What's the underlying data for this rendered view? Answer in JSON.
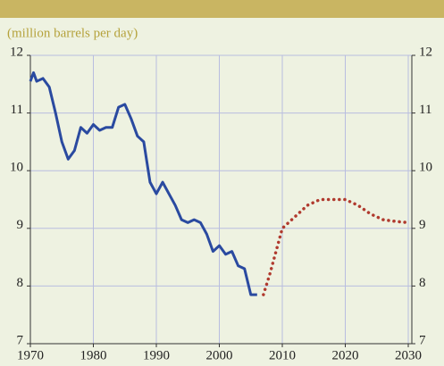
{
  "chart_data": {
    "type": "line",
    "subtitle": "(million barrels per day)",
    "series": [
      {
        "color": "#2a4aa0",
        "style": "solid",
        "x": [
          1970,
          1970.5,
          1971,
          1972,
          1973,
          1974,
          1975,
          1976,
          1977,
          1978,
          1979,
          1980,
          1981,
          1982,
          1983,
          1984,
          1985,
          1986,
          1987,
          1988,
          1989,
          1990,
          1991,
          1992,
          1993,
          1994,
          1995,
          1996,
          1997,
          1998,
          1999,
          2000,
          2001,
          2002,
          2003,
          2004,
          2005,
          2006
        ],
        "values": [
          11.55,
          11.7,
          11.55,
          11.6,
          11.45,
          11.0,
          10.5,
          10.2,
          10.35,
          10.75,
          10.65,
          10.8,
          10.7,
          10.75,
          10.75,
          11.1,
          11.15,
          10.9,
          10.6,
          10.5,
          9.8,
          9.6,
          9.8,
          9.6,
          9.4,
          9.15,
          9.1,
          9.15,
          9.1,
          8.9,
          8.6,
          8.7,
          8.55,
          8.6,
          8.35,
          8.3,
          7.85,
          7.85
        ]
      },
      {
        "color": "#b03a2e",
        "style": "dotted",
        "x": [
          2007,
          2008,
          2009,
          2010,
          2012,
          2014,
          2016,
          2018,
          2020,
          2022,
          2024,
          2026,
          2028,
          2030
        ],
        "values": [
          7.85,
          8.2,
          8.6,
          9.0,
          9.2,
          9.4,
          9.5,
          9.5,
          9.5,
          9.4,
          9.25,
          9.15,
          9.12,
          9.1
        ]
      }
    ],
    "xlim": [
      1970,
      2030
    ],
    "xticks": [
      1970,
      1980,
      1990,
      2000,
      2010,
      2020,
      2030
    ],
    "ylim": [
      7,
      12
    ],
    "yticks": [
      7,
      8,
      9,
      10,
      11,
      12
    ],
    "y2lim": [
      7,
      12
    ],
    "y2ticks": [
      7,
      8,
      9,
      10,
      11,
      12
    ],
    "grid": true
  }
}
